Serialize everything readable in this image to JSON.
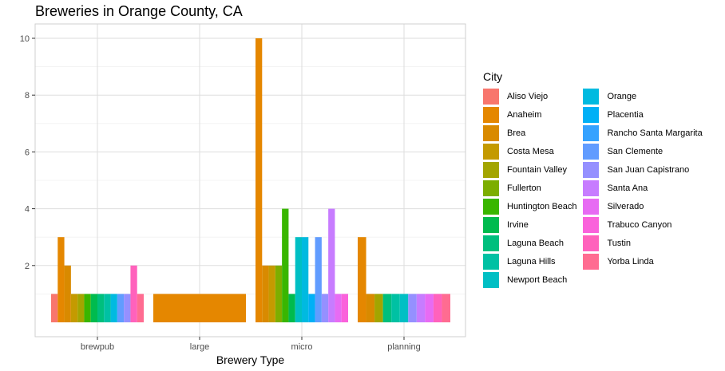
{
  "chart_data": {
    "type": "bar",
    "title": "Breweries in Orange County, CA",
    "xlabel": "Brewery Type",
    "ylabel": "",
    "ylim": [
      0,
      10.8
    ],
    "yticks": [
      2,
      4,
      6,
      8,
      10
    ],
    "categories": [
      "brewpub",
      "large",
      "micro",
      "planning"
    ],
    "grid": true,
    "legend": {
      "title": "City",
      "position": "right"
    },
    "cities": [
      {
        "name": "Aliso Viejo",
        "color": "#F8766D"
      },
      {
        "name": "Anaheim",
        "color": "#E58700"
      },
      {
        "name": "Brea",
        "color": "#D98A00"
      },
      {
        "name": "Costa Mesa",
        "color": "#C49A00"
      },
      {
        "name": "Fountain Valley",
        "color": "#A3A500"
      },
      {
        "name": "Fullerton",
        "color": "#7CAE00"
      },
      {
        "name": "Huntington Beach",
        "color": "#39B600"
      },
      {
        "name": "Irvine",
        "color": "#00BB4E"
      },
      {
        "name": "Laguna Beach",
        "color": "#00BF7D"
      },
      {
        "name": "Laguna Hills",
        "color": "#00C1A3"
      },
      {
        "name": "Newport Beach",
        "color": "#00BFC4"
      },
      {
        "name": "Orange",
        "color": "#00BAE0"
      },
      {
        "name": "Placentia",
        "color": "#00B0F6"
      },
      {
        "name": "Rancho Santa Margarita",
        "color": "#35A2FF"
      },
      {
        "name": "San Clemente",
        "color": "#619CFF"
      },
      {
        "name": "San Juan Capistrano",
        "color": "#9590FF"
      },
      {
        "name": "Santa Ana",
        "color": "#C77CFF"
      },
      {
        "name": "Silverado",
        "color": "#E76BF3"
      },
      {
        "name": "Trabuco Canyon",
        "color": "#FA62DB"
      },
      {
        "name": "Tustin",
        "color": "#FF62BC"
      },
      {
        "name": "Yorba Linda",
        "color": "#FF6C91"
      }
    ],
    "bars": [
      {
        "category": "brewpub",
        "values": [
          {
            "city": "Aliso Viejo",
            "value": 1
          },
          {
            "city": "Anaheim",
            "value": 3
          },
          {
            "city": "Brea",
            "value": 2
          },
          {
            "city": "Costa Mesa",
            "value": 1
          },
          {
            "city": "Fountain Valley",
            "value": 1
          },
          {
            "city": "Huntington Beach",
            "value": 1
          },
          {
            "city": "Irvine",
            "value": 1
          },
          {
            "city": "Laguna Beach",
            "value": 1
          },
          {
            "city": "Laguna Hills",
            "value": 1
          },
          {
            "city": "Orange",
            "value": 1
          },
          {
            "city": "San Clemente",
            "value": 1
          },
          {
            "city": "San Juan Capistrano",
            "value": 1
          },
          {
            "city": "Tustin",
            "value": 2
          },
          {
            "city": "Yorba Linda",
            "value": 1
          }
        ]
      },
      {
        "category": "large",
        "values": [
          {
            "city": "Anaheim",
            "value": 1
          }
        ]
      },
      {
        "category": "micro",
        "values": [
          {
            "city": "Anaheim",
            "value": 10
          },
          {
            "city": "Brea",
            "value": 2
          },
          {
            "city": "Costa Mesa",
            "value": 2
          },
          {
            "city": "Fullerton",
            "value": 2
          },
          {
            "city": "Huntington Beach",
            "value": 4
          },
          {
            "city": "Irvine",
            "value": 1
          },
          {
            "city": "Newport Beach",
            "value": 3
          },
          {
            "city": "Orange",
            "value": 3
          },
          {
            "city": "Placentia",
            "value": 1
          },
          {
            "city": "San Clemente",
            "value": 3
          },
          {
            "city": "San Juan Capistrano",
            "value": 1
          },
          {
            "city": "Santa Ana",
            "value": 4
          },
          {
            "city": "Silverado",
            "value": 1
          },
          {
            "city": "Trabuco Canyon",
            "value": 1
          }
        ]
      },
      {
        "category": "planning",
        "values": [
          {
            "city": "Anaheim",
            "value": 3
          },
          {
            "city": "Brea",
            "value": 1
          },
          {
            "city": "Fountain Valley",
            "value": 1
          },
          {
            "city": "Laguna Beach",
            "value": 1
          },
          {
            "city": "Laguna Hills",
            "value": 1
          },
          {
            "city": "Newport Beach",
            "value": 1
          },
          {
            "city": "San Juan Capistrano",
            "value": 1
          },
          {
            "city": "Santa Ana",
            "value": 1
          },
          {
            "city": "Silverado",
            "value": 1
          },
          {
            "city": "Tustin",
            "value": 1
          },
          {
            "city": "Yorba Linda",
            "value": 1
          }
        ]
      }
    ]
  }
}
